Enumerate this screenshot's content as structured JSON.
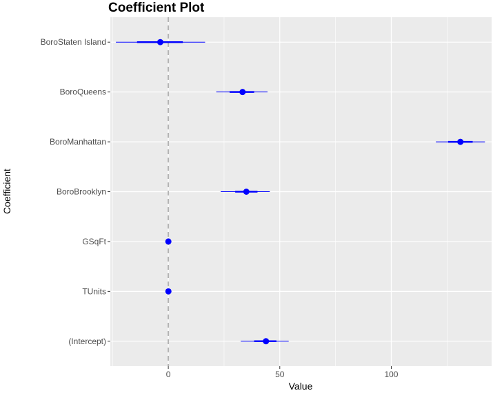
{
  "chart_data": {
    "type": "scatter",
    "title": "Coefficient Plot",
    "xlabel": "Value",
    "ylabel": "Coefficient",
    "xlim": [
      -26,
      145
    ],
    "x_ticks": [
      0,
      50,
      100
    ],
    "grid": true,
    "zero_line": 0,
    "colors": {
      "panel": "#ebebeb",
      "grid_major": "#ffffff",
      "point": "#0000ff",
      "interval": "#0000ff",
      "zero_line": "#b3b3b3"
    },
    "categories": [
      "BoroStaten Island",
      "BoroQueens",
      "BoroManhattan",
      "BoroBrooklyn",
      "GSqFt",
      "TUnits",
      "(Intercept)"
    ],
    "series": [
      {
        "values": [
          -3.6,
          33.3,
          131.0,
          35.0,
          0.03,
          0.05,
          43.8
        ],
        "inner_low": [
          -14,
          27.5,
          125.5,
          30,
          -0.2,
          -0.2,
          38.5
        ],
        "inner_high": [
          6.5,
          38.5,
          136.5,
          40,
          0.2,
          0.2,
          48.5
        ],
        "outer_low": [
          -23.5,
          21.5,
          120.0,
          23.5,
          -0.3,
          -0.3,
          32.5
        ],
        "outer_high": [
          16.5,
          44.5,
          142.0,
          45.5,
          0.3,
          0.3,
          54.0
        ]
      }
    ]
  }
}
